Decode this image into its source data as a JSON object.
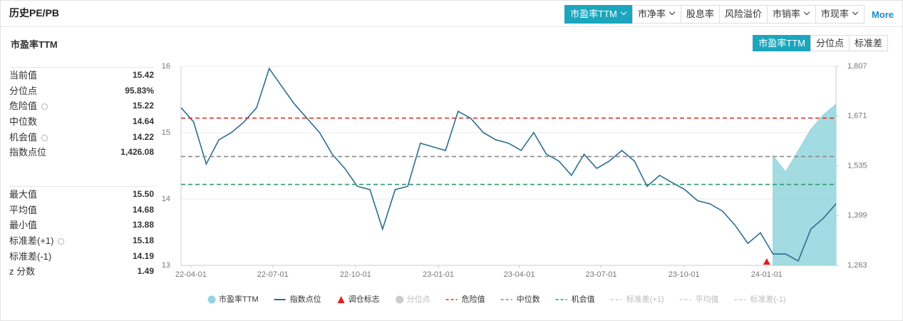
{
  "header": {
    "title": "历史PE/PB",
    "tabs": [
      {
        "label": "市盈率TTM",
        "menu": true
      },
      {
        "label": "市净率",
        "menu": true
      },
      {
        "label": "股息率",
        "menu": false
      },
      {
        "label": "风险溢价",
        "menu": false
      },
      {
        "label": "市销率",
        "menu": true
      },
      {
        "label": "市现率",
        "menu": true
      }
    ],
    "active": 0,
    "more": "More"
  },
  "panel": {
    "title": "市盈率TTM",
    "tabs": [
      "市盈率TTM",
      "分位点",
      "标准差"
    ],
    "active": 0
  },
  "stats": {
    "groups": [
      [
        {
          "label": "当前值",
          "value": "15.42"
        },
        {
          "label": "分位点",
          "value": "95.83%"
        },
        {
          "label": "危险值",
          "value": "15.22",
          "settings": true
        },
        {
          "label": "中位数",
          "value": "14.64"
        },
        {
          "label": "机会值",
          "value": "14.22",
          "settings": true
        },
        {
          "label": "指数点位",
          "value": "1,426.08"
        }
      ],
      [
        {
          "label": "最大值",
          "value": "15.50"
        },
        {
          "label": "平均值",
          "value": "14.68"
        },
        {
          "label": "最小值",
          "value": "13.88"
        },
        {
          "label": "标准差(+1)",
          "value": "15.18",
          "settings": true
        },
        {
          "label": "标准差(-1)",
          "value": "14.19"
        },
        {
          "label": "z 分数",
          "value": "1.49"
        }
      ]
    ]
  },
  "chart_data": {
    "type": "line",
    "x": [
      "22-03-21",
      "22-04-04",
      "22-04-18",
      "22-05-02",
      "22-05-16",
      "22-05-30",
      "22-06-13",
      "22-06-27",
      "22-07-11",
      "22-07-25",
      "22-08-08",
      "22-08-22",
      "22-09-05",
      "22-09-19",
      "22-10-03",
      "22-10-17",
      "22-10-31",
      "22-11-14",
      "22-11-28",
      "22-12-12",
      "22-12-26",
      "23-01-09",
      "23-01-23",
      "23-02-06",
      "23-02-20",
      "23-03-06",
      "23-03-20",
      "23-04-03",
      "23-04-17",
      "23-05-01",
      "23-05-15",
      "23-05-29",
      "23-06-12",
      "23-06-26",
      "23-07-10",
      "23-07-24",
      "23-08-07",
      "23-08-21",
      "23-09-04",
      "23-09-18",
      "23-10-02",
      "23-10-16",
      "23-10-30",
      "23-11-13",
      "23-11-27",
      "23-12-11",
      "23-12-25",
      "24-01-08",
      "24-01-22",
      "24-02-05",
      "24-02-19",
      "24-03-04",
      "24-03-18"
    ],
    "xlim": [
      "22-03-21",
      "24-03-18"
    ],
    "xticks": [
      "22-04-01",
      "22-07-01",
      "22-10-01",
      "23-01-01",
      "23-04-01",
      "23-07-01",
      "23-10-01",
      "24-01-01"
    ],
    "series": [
      {
        "name": "市盈率TTM",
        "color": "#93d5dd",
        "axis": "y",
        "values": [
          null,
          null,
          null,
          null,
          null,
          null,
          null,
          null,
          null,
          null,
          null,
          null,
          null,
          null,
          null,
          null,
          null,
          null,
          null,
          null,
          null,
          null,
          null,
          null,
          null,
          null,
          null,
          null,
          null,
          null,
          null,
          null,
          null,
          null,
          null,
          null,
          null,
          null,
          null,
          null,
          null,
          null,
          null,
          null,
          null,
          null,
          null,
          14.65,
          14.41,
          14.73,
          15.05,
          15.27,
          15.43
        ]
      },
      {
        "name": "指数点位",
        "color": "#2a6f8f",
        "axis": "y2",
        "values": [
          1694,
          1655,
          1540,
          1606,
          1626,
          1655,
          1694,
          1801,
          1752,
          1704,
          1665,
          1626,
          1567,
          1528,
          1479,
          1470,
          1362,
          1470,
          1479,
          1597,
          1587,
          1577,
          1684,
          1665,
          1626,
          1606,
          1597,
          1577,
          1626,
          1567,
          1548,
          1509,
          1567,
          1528,
          1548,
          1577,
          1548,
          1479,
          1509,
          1489,
          1470,
          1440,
          1431,
          1411,
          1372,
          1323,
          1352,
          1294,
          1294,
          1275,
          1362,
          1392,
          1431
        ]
      }
    ],
    "markers": [
      {
        "name": "调仓标志",
        "x": "24-01-01",
        "color": "#e02020"
      }
    ],
    "reference_lines": [
      {
        "name": "危险值",
        "value": 15.22,
        "color": "#d9342b"
      },
      {
        "name": "中位数",
        "value": 14.64,
        "color": "#8a8a8a"
      },
      {
        "name": "机会值",
        "value": 14.22,
        "color": "#2e9a6a"
      }
    ],
    "hidden_items": [
      {
        "name": "分位点",
        "color": "#cccccc",
        "shape": "circle"
      },
      {
        "name": "标准差(+1)",
        "color": "#cccccc",
        "shape": "dash"
      },
      {
        "name": "平均值",
        "color": "#cccccc",
        "shape": "dash"
      },
      {
        "name": "标准差(-1)",
        "color": "#cccccc",
        "shape": "dash"
      }
    ],
    "ylim": [
      13,
      16
    ],
    "yticks": [
      13,
      14,
      15,
      16
    ],
    "y2lim": [
      1263,
      1807
    ],
    "y2ticks": [
      {
        "value": 1263,
        "label": "1,263"
      },
      {
        "value": 1399,
        "label": "1,399"
      },
      {
        "value": 1535,
        "label": "1,535"
      },
      {
        "value": 1671,
        "label": "1,671"
      },
      {
        "value": 1807,
        "label": "1,807"
      }
    ],
    "grid": true
  }
}
